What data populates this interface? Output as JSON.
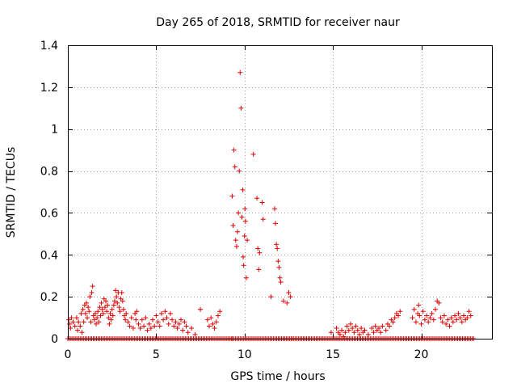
{
  "chart_data": {
    "type": "scatter",
    "title": "Day 265 of 2018, SRMTID for receiver naur",
    "xlabel": "GPS time / hours",
    "ylabel": "SRMTID / TECUs",
    "xlim": [
      0,
      24
    ],
    "ylim": [
      0,
      1.4
    ],
    "xticks": [
      0,
      5,
      10,
      15,
      20
    ],
    "yticks": [
      0,
      0.2,
      0.4,
      0.6,
      0.8,
      1.0,
      1.2,
      1.4
    ],
    "xtick_labels": [
      "0",
      "5",
      "10",
      "15",
      "20"
    ],
    "ytick_labels": [
      "0",
      "0.2",
      "0.4",
      "0.6",
      "0.8",
      "1",
      "1.2",
      "1.4"
    ],
    "grid": true,
    "marker": "+",
    "color": "#e00000",
    "series": [
      {
        "name": "SRMTID",
        "points": [
          [
            0.05,
            0.09
          ],
          [
            0.1,
            0.07
          ],
          [
            0.15,
            0.05
          ],
          [
            0.2,
            0.1
          ],
          [
            0.3,
            0.08
          ],
          [
            0.4,
            0.06
          ],
          [
            0.5,
            0.1
          ],
          [
            0.55,
            0.04
          ],
          [
            0.6,
            0.08
          ],
          [
            0.7,
            0.06
          ],
          [
            0.75,
            0.12
          ],
          [
            0.8,
            0.03
          ],
          [
            0.85,
            0.14
          ],
          [
            0.9,
            0.08
          ],
          [
            0.95,
            0.16
          ],
          [
            1.0,
            0.12
          ],
          [
            1.05,
            0.17
          ],
          [
            1.1,
            0.1
          ],
          [
            1.15,
            0.15
          ],
          [
            1.2,
            0.13
          ],
          [
            1.25,
            0.2
          ],
          [
            1.3,
            0.08
          ],
          [
            1.35,
            0.22
          ],
          [
            1.4,
            0.25
          ],
          [
            1.45,
            0.11
          ],
          [
            1.5,
            0.09
          ],
          [
            1.55,
            0.12
          ],
          [
            1.6,
            0.07
          ],
          [
            1.65,
            0.1
          ],
          [
            1.7,
            0.13
          ],
          [
            1.75,
            0.08
          ],
          [
            1.8,
            0.15
          ],
          [
            1.85,
            0.11
          ],
          [
            1.9,
            0.17
          ],
          [
            1.95,
            0.14
          ],
          [
            2.0,
            0.12
          ],
          [
            2.05,
            0.19
          ],
          [
            2.1,
            0.15
          ],
          [
            2.15,
            0.18
          ],
          [
            2.2,
            0.13
          ],
          [
            2.25,
            0.16
          ],
          [
            2.3,
            0.1
          ],
          [
            2.35,
            0.07
          ],
          [
            2.4,
            0.12
          ],
          [
            2.45,
            0.09
          ],
          [
            2.5,
            0.14
          ],
          [
            2.55,
            0.11
          ],
          [
            2.6,
            0.16
          ],
          [
            2.65,
            0.18
          ],
          [
            2.7,
            0.23
          ],
          [
            2.75,
            0.2
          ],
          [
            2.8,
            0.17
          ],
          [
            2.85,
            0.22
          ],
          [
            2.9,
            0.15
          ],
          [
            2.95,
            0.13
          ],
          [
            3.0,
            0.19
          ],
          [
            3.05,
            0.22
          ],
          [
            3.1,
            0.18
          ],
          [
            3.15,
            0.14
          ],
          [
            3.2,
            0.11
          ],
          [
            3.25,
            0.09
          ],
          [
            3.3,
            0.12
          ],
          [
            3.4,
            0.08
          ],
          [
            3.5,
            0.06
          ],
          [
            3.6,
            0.1
          ],
          [
            3.7,
            0.05
          ],
          [
            3.8,
            0.12
          ],
          [
            3.85,
            0.09
          ],
          [
            3.9,
            0.13
          ],
          [
            4.0,
            0.07
          ],
          [
            4.1,
            0.05
          ],
          [
            4.2,
            0.09
          ],
          [
            4.3,
            0.06
          ],
          [
            4.4,
            0.1
          ],
          [
            4.5,
            0.04
          ],
          [
            4.6,
            0.07
          ],
          [
            4.7,
            0.05
          ],
          [
            4.8,
            0.09
          ],
          [
            4.9,
            0.06
          ],
          [
            5.0,
            0.11
          ],
          [
            5.1,
            0.08
          ],
          [
            5.2,
            0.06
          ],
          [
            5.3,
            0.12
          ],
          [
            5.4,
            0.09
          ],
          [
            5.5,
            0.13
          ],
          [
            5.6,
            0.1
          ],
          [
            5.7,
            0.07
          ],
          [
            5.8,
            0.12
          ],
          [
            5.9,
            0.09
          ],
          [
            6.0,
            0.06
          ],
          [
            6.1,
            0.08
          ],
          [
            6.2,
            0.05
          ],
          [
            6.3,
            0.07
          ],
          [
            6.4,
            0.09
          ],
          [
            6.5,
            0.04
          ],
          [
            6.6,
            0.08
          ],
          [
            6.7,
            0.06
          ],
          [
            6.8,
            0.03
          ],
          [
            7.0,
            0.05
          ],
          [
            7.2,
            0.02
          ],
          [
            7.5,
            0.14
          ],
          [
            7.9,
            0.09
          ],
          [
            8.0,
            0.06
          ],
          [
            8.1,
            0.1
          ],
          [
            8.2,
            0.07
          ],
          [
            8.3,
            0.05
          ],
          [
            8.4,
            0.08
          ],
          [
            8.5,
            0.11
          ],
          [
            8.6,
            0.13
          ],
          [
            9.3,
            0.68
          ],
          [
            9.35,
            0.54
          ],
          [
            9.4,
            0.9
          ],
          [
            9.45,
            0.82
          ],
          [
            9.5,
            0.47
          ],
          [
            9.55,
            0.44
          ],
          [
            9.6,
            0.51
          ],
          [
            9.65,
            0.6
          ],
          [
            9.7,
            0.8
          ],
          [
            9.75,
            1.27
          ],
          [
            9.8,
            1.1
          ],
          [
            9.85,
            0.58
          ],
          [
            9.9,
            0.71
          ],
          [
            9.92,
            0.39
          ],
          [
            9.95,
            0.35
          ],
          [
            10.0,
            0.49
          ],
          [
            10.02,
            0.62
          ],
          [
            10.05,
            0.56
          ],
          [
            10.1,
            0.29
          ],
          [
            10.15,
            0.47
          ],
          [
            10.5,
            0.88
          ],
          [
            10.7,
            0.67
          ],
          [
            10.75,
            0.43
          ],
          [
            10.8,
            0.33
          ],
          [
            10.85,
            0.41
          ],
          [
            11.0,
            0.65
          ],
          [
            11.05,
            0.57
          ],
          [
            11.5,
            0.2
          ],
          [
            11.7,
            0.62
          ],
          [
            11.75,
            0.55
          ],
          [
            11.8,
            0.45
          ],
          [
            11.85,
            0.43
          ],
          [
            11.9,
            0.37
          ],
          [
            11.95,
            0.34
          ],
          [
            12.0,
            0.29
          ],
          [
            12.05,
            0.27
          ],
          [
            12.2,
            0.18
          ],
          [
            12.4,
            0.17
          ],
          [
            12.5,
            0.22
          ],
          [
            12.6,
            0.2
          ],
          [
            14.9,
            0.03
          ],
          [
            15.2,
            0.05
          ],
          [
            15.3,
            0.03
          ],
          [
            15.4,
            0.02
          ],
          [
            15.5,
            0.04
          ],
          [
            15.6,
            0.01
          ],
          [
            15.7,
            0.03
          ],
          [
            15.8,
            0.06
          ],
          [
            15.9,
            0.04
          ],
          [
            16.0,
            0.07
          ],
          [
            16.1,
            0.05
          ],
          [
            16.2,
            0.03
          ],
          [
            16.3,
            0.06
          ],
          [
            16.4,
            0.04
          ],
          [
            16.5,
            0.02
          ],
          [
            16.6,
            0.05
          ],
          [
            16.7,
            0.03
          ],
          [
            16.8,
            0.04
          ],
          [
            17.0,
            0.02
          ],
          [
            17.2,
            0.05
          ],
          [
            17.3,
            0.03
          ],
          [
            17.4,
            0.06
          ],
          [
            17.5,
            0.04
          ],
          [
            17.6,
            0.05
          ],
          [
            17.7,
            0.03
          ],
          [
            17.8,
            0.06
          ],
          [
            18.0,
            0.04
          ],
          [
            18.1,
            0.07
          ],
          [
            18.2,
            0.06
          ],
          [
            18.3,
            0.09
          ],
          [
            18.4,
            0.08
          ],
          [
            18.5,
            0.1
          ],
          [
            18.6,
            0.12
          ],
          [
            18.7,
            0.11
          ],
          [
            18.8,
            0.13
          ],
          [
            19.5,
            0.1
          ],
          [
            19.6,
            0.14
          ],
          [
            19.7,
            0.08
          ],
          [
            19.8,
            0.12
          ],
          [
            19.85,
            0.16
          ],
          [
            19.9,
            0.11
          ],
          [
            20.0,
            0.07
          ],
          [
            20.1,
            0.13
          ],
          [
            20.2,
            0.09
          ],
          [
            20.3,
            0.11
          ],
          [
            20.4,
            0.08
          ],
          [
            20.5,
            0.1
          ],
          [
            20.6,
            0.12
          ],
          [
            20.7,
            0.09
          ],
          [
            20.8,
            0.14
          ],
          [
            20.9,
            0.18
          ],
          [
            21.0,
            0.17
          ],
          [
            21.1,
            0.1
          ],
          [
            21.2,
            0.08
          ],
          [
            21.3,
            0.11
          ],
          [
            21.4,
            0.07
          ],
          [
            21.5,
            0.09
          ],
          [
            21.6,
            0.06
          ],
          [
            21.7,
            0.1
          ],
          [
            21.8,
            0.08
          ],
          [
            21.9,
            0.11
          ],
          [
            22.0,
            0.09
          ],
          [
            22.1,
            0.12
          ],
          [
            22.2,
            0.1
          ],
          [
            22.3,
            0.08
          ],
          [
            22.4,
            0.11
          ],
          [
            22.5,
            0.09
          ],
          [
            22.6,
            0.1
          ],
          [
            22.7,
            0.13
          ],
          [
            22.8,
            0.11
          ]
        ]
      }
    ],
    "baseline": {
      "value": 0,
      "x_ranges": [
        [
          0,
          9.3
        ],
        [
          9.3,
          12.7
        ],
        [
          12.7,
          23
        ]
      ],
      "step": 0.09
    }
  }
}
